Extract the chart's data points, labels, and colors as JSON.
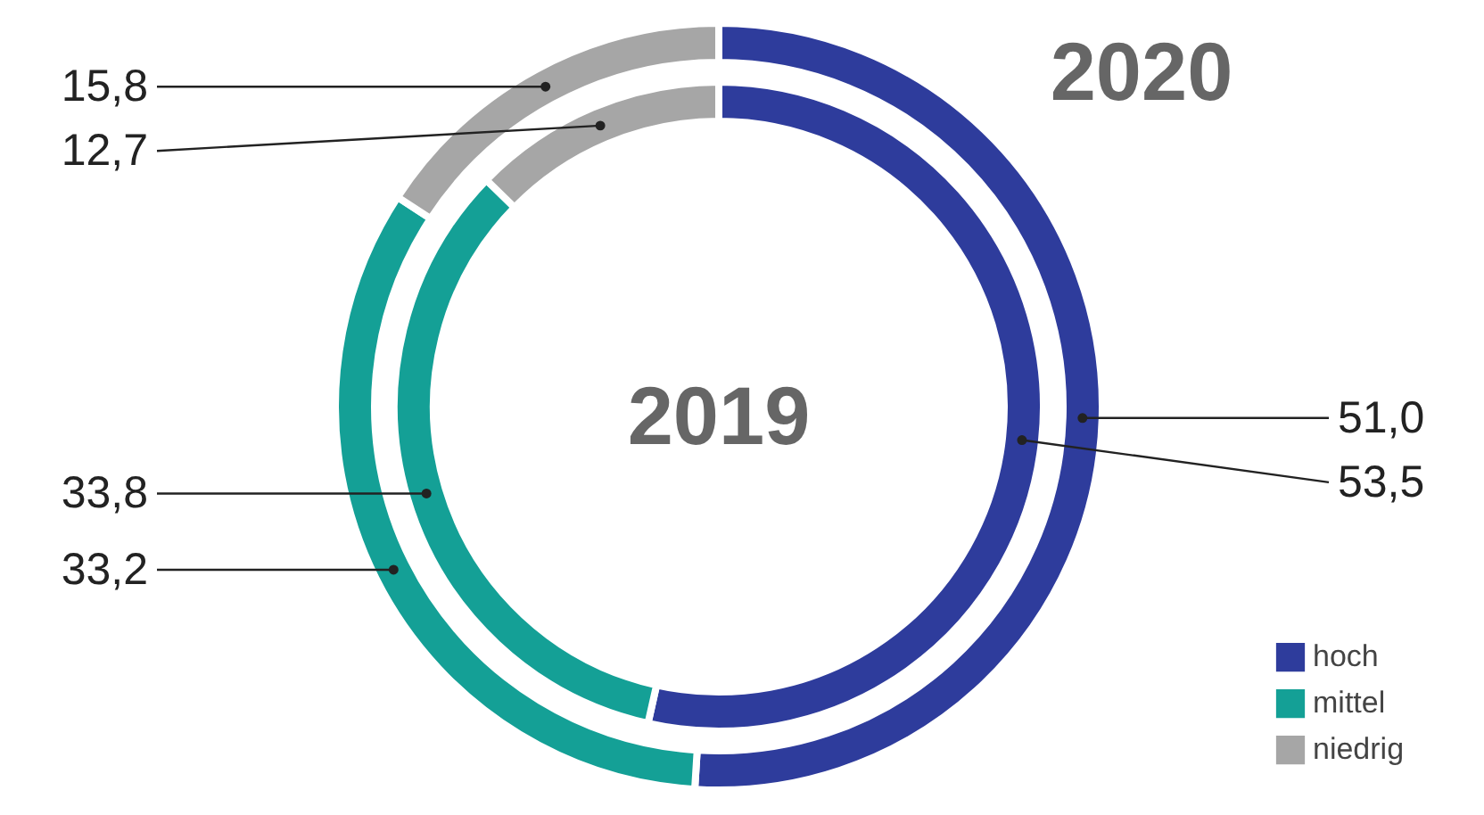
{
  "chart_data": {
    "type": "donut",
    "categories": [
      "hoch",
      "mittel",
      "niedrig"
    ],
    "colors": [
      "#2e3c9c",
      "#14a096",
      "#a6a6a6"
    ],
    "series": [
      {
        "name": "2020",
        "values": [
          51.0,
          33.2,
          15.8
        ],
        "value_labels": [
          "51,0",
          "33,2",
          "15,8"
        ]
      },
      {
        "name": "2019",
        "values": [
          53.5,
          33.8,
          12.7
        ],
        "value_labels": [
          "53,5",
          "33,8",
          "12,7"
        ]
      }
    ],
    "legend": "bottom right"
  }
}
